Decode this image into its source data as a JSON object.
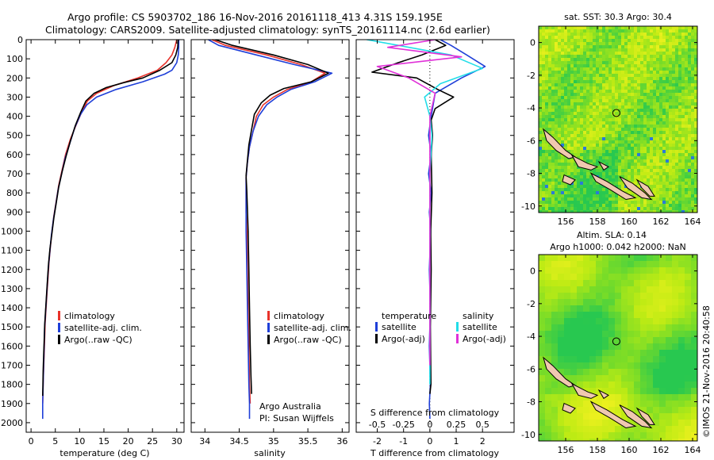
{
  "header": {
    "line1": "Argo profile: CS 5903702_186 16-Nov-2016 20161118_413 4.31S 159.195E",
    "line2": "Climatology: CARS2009. Satellite-adjusted climatology: synTS_20161114.nc (2.6d earlier)"
  },
  "colors": {
    "climatology": "#e8322a",
    "satellite": "#1f3fd8",
    "argo": "#000000",
    "satellite_salinity": "#22dde8",
    "argo_salinity": "#e030d8",
    "land": "#f0c8b0"
  },
  "credits": {
    "agency": "Argo Australia",
    "pi": "PI: Susan Wijffels",
    "stamp": "©IMOS 21-Nov-2016 20:40:58"
  },
  "chart_data": [
    {
      "type": "line",
      "xlabel": "temperature (deg C)",
      "ylabel": "",
      "xlim": [
        -1,
        31.5
      ],
      "ylim": [
        2050,
        0
      ],
      "xticks": [
        0,
        5,
        10,
        15,
        20,
        25,
        30
      ],
      "xtick_labels": [
        "0",
        "5",
        "10",
        "15",
        "20",
        "25",
        "30"
      ],
      "yticks": [
        0,
        100,
        200,
        300,
        400,
        500,
        600,
        700,
        800,
        900,
        1000,
        1100,
        1200,
        1300,
        1400,
        1500,
        1600,
        1700,
        1800,
        1900,
        2000
      ],
      "ytick_labels": [
        "0",
        "100",
        "200",
        "300",
        "400",
        "500",
        "600",
        "700",
        "800",
        "900",
        "1000",
        "1100",
        "1200",
        "1300",
        "1400",
        "1500",
        "1600",
        "1700",
        "1800",
        "1900",
        "2000"
      ],
      "legend": [
        "climatology",
        "satellite-adj. clim.",
        "Argo(..raw -QC)"
      ],
      "series": [
        {
          "name": "climatology",
          "color": "#e8322a",
          "x": [
            30.0,
            29.6,
            29.0,
            27.8,
            26.0,
            22.0,
            17.0,
            13.5,
            11.6,
            10.4,
            9.2,
            8.1,
            7.1,
            6.4,
            5.7,
            5.2,
            4.7,
            4.3,
            4.0,
            3.7,
            3.5,
            3.3,
            3.1,
            2.9,
            2.8,
            2.7,
            2.6,
            2.5,
            2.45,
            2.4
          ],
          "y": [
            0,
            40,
            80,
            120,
            160,
            200,
            240,
            280,
            320,
            380,
            450,
            520,
            600,
            680,
            760,
            840,
            920,
            1000,
            1080,
            1160,
            1240,
            1320,
            1400,
            1480,
            1560,
            1640,
            1720,
            1800,
            1860,
            1900
          ]
        },
        {
          "name": "satellite-adj. clim.",
          "color": "#1f3fd8",
          "x": [
            30.4,
            30.4,
            30.3,
            30.0,
            29.0,
            27.5,
            23.0,
            17.5,
            13.5,
            11.5,
            10.2,
            9.0,
            8.0,
            7.0,
            6.3,
            5.6,
            5.1,
            4.6,
            4.2,
            3.9,
            3.6,
            3.4,
            3.2,
            3.0,
            2.8,
            2.7,
            2.6,
            2.5,
            2.4,
            2.4
          ],
          "y": [
            0,
            40,
            80,
            120,
            160,
            180,
            220,
            260,
            300,
            340,
            390,
            460,
            540,
            620,
            700,
            780,
            860,
            940,
            1020,
            1100,
            1180,
            1260,
            1340,
            1420,
            1500,
            1600,
            1700,
            1800,
            1900,
            1980
          ]
        },
        {
          "name": "Argo(..raw -QC)",
          "color": "#000000",
          "x": [
            30.3,
            30.2,
            29.8,
            29.0,
            26.5,
            23.0,
            19.0,
            15.5,
            13.0,
            11.3,
            10.2,
            9.1,
            8.1,
            7.2,
            6.4,
            5.7,
            5.2,
            4.7,
            4.3,
            3.9,
            3.6,
            3.4,
            3.2,
            3.0,
            2.8,
            2.7,
            2.6,
            2.5,
            2.45,
            2.4
          ],
          "y": [
            0,
            40,
            80,
            120,
            160,
            200,
            225,
            250,
            280,
            320,
            380,
            450,
            530,
            610,
            690,
            770,
            850,
            930,
            1010,
            1090,
            1170,
            1250,
            1330,
            1410,
            1490,
            1570,
            1650,
            1730,
            1800,
            1860
          ]
        }
      ]
    },
    {
      "type": "line",
      "xlabel": "salinity",
      "ylabel": "",
      "xlim": [
        33.8,
        36.1
      ],
      "ylim": [
        2050,
        0
      ],
      "xticks": [
        34,
        34.5,
        35,
        35.5,
        36
      ],
      "xtick_labels": [
        "34",
        "34.5",
        "35",
        "35.5",
        "36"
      ],
      "legend": [
        "climatology",
        "satellite-adj. clim.",
        "Argo(..raw -QC)"
      ],
      "series": [
        {
          "name": "climatology",
          "color": "#e8322a",
          "x": [
            34.1,
            34.3,
            34.9,
            35.4,
            35.75,
            35.55,
            35.2,
            35.0,
            34.85,
            34.75,
            34.7,
            34.65,
            34.62,
            34.6,
            34.6,
            34.6,
            34.61,
            34.62,
            34.63,
            34.64,
            34.65,
            34.66
          ],
          "y": [
            0,
            30,
            80,
            130,
            175,
            220,
            260,
            300,
            340,
            400,
            480,
            560,
            640,
            720,
            800,
            900,
            1000,
            1200,
            1400,
            1600,
            1800,
            1900
          ]
        },
        {
          "name": "satellite-adj. clim.",
          "color": "#1f3fd8",
          "x": [
            34.05,
            34.2,
            34.75,
            35.3,
            35.85,
            35.6,
            35.25,
            35.05,
            34.9,
            34.78,
            34.7,
            34.65,
            34.62,
            34.6,
            34.6,
            34.6,
            34.6,
            34.61,
            34.62,
            34.63,
            34.64,
            34.65,
            34.65
          ],
          "y": [
            0,
            30,
            80,
            130,
            175,
            220,
            260,
            300,
            340,
            400,
            480,
            560,
            640,
            720,
            800,
            900,
            1000,
            1200,
            1400,
            1600,
            1800,
            1900,
            1980
          ]
        },
        {
          "name": "Argo(..raw -QC)",
          "color": "#000000",
          "x": [
            34.15,
            34.4,
            35.0,
            35.5,
            35.8,
            35.55,
            35.15,
            34.95,
            34.82,
            34.72,
            34.68,
            34.64,
            34.62,
            34.6,
            34.61,
            34.62,
            34.63,
            34.64,
            34.65,
            34.66,
            34.67,
            34.68
          ],
          "y": [
            0,
            30,
            80,
            130,
            175,
            220,
            255,
            290,
            330,
            390,
            470,
            550,
            630,
            710,
            790,
            890,
            1000,
            1200,
            1400,
            1600,
            1750,
            1850
          ]
        }
      ]
    },
    {
      "type": "line",
      "xlabel": "T difference from climatology",
      "xlabel_top": "S difference from climatology",
      "xlim": [
        -2.8,
        3.2
      ],
      "ylim": [
        2050,
        0
      ],
      "xticks": [
        -2,
        -1,
        0,
        1,
        2
      ],
      "xtick_labels": [
        "-2",
        "-1",
        "0",
        "1",
        "2"
      ],
      "xticks_top": [
        -0.5,
        -0.25,
        0,
        0.25,
        0.5
      ],
      "xtick_labels_top": [
        "-0.5",
        "-0.25",
        "0",
        "0.25",
        "0.5"
      ],
      "legend_groups": [
        "temperature",
        "salinity"
      ],
      "legend": [
        "satellite",
        "Argo(-adj)",
        "satellite",
        "Argo(-adj)"
      ],
      "series": [
        {
          "name": "satellite",
          "group": "temperature",
          "color": "#1f3fd8",
          "x": [
            0.4,
            0.8,
            1.4,
            2.1,
            1.2,
            0.2,
            0.05,
            -0.05,
            0.05,
            -0.05,
            0.05,
            -0.02,
            0.03,
            -0.02,
            0.02,
            -0.02,
            0.02,
            -0.02,
            0.0
          ],
          "y": [
            0,
            30,
            80,
            140,
            200,
            280,
            400,
            500,
            600,
            700,
            800,
            900,
            1000,
            1200,
            1400,
            1600,
            1800,
            1900,
            1980
          ]
        },
        {
          "name": "Argo(-adj)",
          "group": "temperature",
          "color": "#000000",
          "x": [
            0.2,
            0.6,
            -0.3,
            -1.2,
            -2.2,
            -0.5,
            0.3,
            0.9,
            0.2,
            0.05,
            0.1,
            0.05,
            0.08,
            0.03,
            0.05,
            0.02,
            0.04,
            0.0
          ],
          "y": [
            0,
            30,
            80,
            120,
            170,
            200,
            260,
            300,
            360,
            420,
            500,
            600,
            800,
            1000,
            1200,
            1500,
            1800,
            1850
          ]
        },
        {
          "name": "satellite",
          "group": "salinity",
          "color": "#22dde8",
          "x": [
            -0.6,
            -0.3,
            0.2,
            0.5,
            0.1,
            -0.05,
            0.0,
            0.02,
            0.0,
            0.0,
            0.0,
            0.0
          ],
          "y": [
            0,
            30,
            80,
            150,
            230,
            300,
            400,
            500,
            700,
            1000,
            1400,
            1800
          ]
        },
        {
          "name": "Argo(-adj)",
          "group": "salinity",
          "color": "#e030d8",
          "x": [
            0.05,
            -0.4,
            0.3,
            -0.5,
            -0.2,
            0.05,
            0.0,
            0.0,
            0.0,
            0.0,
            0.0
          ],
          "y": [
            0,
            40,
            90,
            140,
            200,
            280,
            400,
            600,
            900,
            1300,
            1700
          ]
        }
      ]
    },
    {
      "type": "heatmap",
      "title": "sat. SST: 30.3 Argo: 30.4",
      "xlim": [
        154.3,
        164.3
      ],
      "ylim": [
        -10.4,
        1.0
      ],
      "xticks": [
        156,
        158,
        160,
        162,
        164
      ],
      "xtick_labels": [
        "156",
        "158",
        "160",
        "162",
        "164"
      ],
      "yticks": [
        0,
        -2,
        -4,
        -6,
        -8,
        -10
      ],
      "ytick_labels": [
        "0",
        "-2",
        "-4",
        "-6",
        "-8",
        "-10"
      ],
      "marker": {
        "lon": 159.195,
        "lat": -4.31
      }
    },
    {
      "type": "heatmap",
      "title": "Altim. SLA: 0.14",
      "subtitle": "Argo h1000: 0.042 h2000: NaN",
      "xlim": [
        154.3,
        164.3
      ],
      "ylim": [
        -10.4,
        1.0
      ],
      "xticks": [
        156,
        158,
        160,
        162,
        164
      ],
      "xtick_labels": [
        "156",
        "158",
        "160",
        "162",
        "164"
      ],
      "yticks": [
        0,
        -2,
        -4,
        -6,
        -8,
        -10
      ],
      "ytick_labels": [
        "0",
        "-2",
        "-4",
        "-6",
        "-8",
        "-10"
      ],
      "marker": {
        "lon": 159.195,
        "lat": -4.31
      }
    }
  ]
}
